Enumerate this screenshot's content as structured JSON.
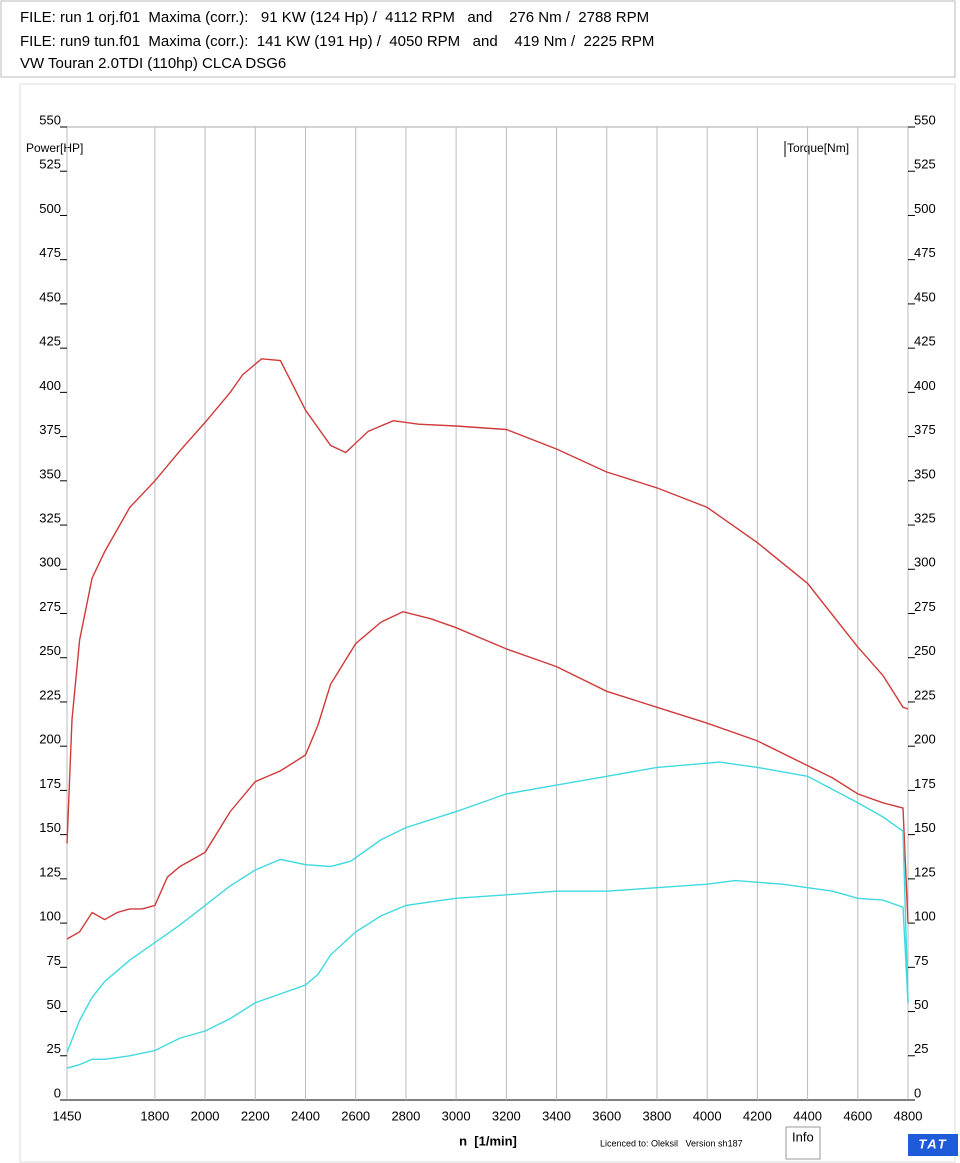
{
  "header": {
    "lines": [
      "FILE: run 1 orj.f01  Maxima (corr.):   91 KW (124 Hp) /  4112 RPM   and    276 Nm /  2788 RPM",
      "FILE: run9 tun.f01  Maxima (corr.):  141 KW (191 Hp) /  4050 RPM   and    419 Nm /  2225 RPM",
      "VW Touran 2.0TDI (110hp) CLCA DSG6"
    ]
  },
  "footer": {
    "licence": "Licenced to: Oleksil   Version sh187",
    "button": "Info",
    "logo": "TAT"
  },
  "chart_data": {
    "type": "line",
    "y_label": "Power[HP]",
    "y2_label": "Torque[Nm]",
    "x_label": "n  [1/min]",
    "xlim": [
      1450,
      4800
    ],
    "xticks": [
      1450,
      1800,
      2000,
      2200,
      2400,
      2600,
      2800,
      3000,
      3200,
      3400,
      3600,
      3800,
      4000,
      4200,
      4400,
      4600,
      4800
    ],
    "ylim": [
      0,
      550
    ],
    "yticks": [
      0,
      25,
      50,
      75,
      100,
      125,
      150,
      175,
      200,
      225,
      250,
      275,
      300,
      325,
      350,
      375,
      400,
      425,
      450,
      475,
      500,
      525,
      550
    ],
    "y2lim": [
      0,
      550
    ],
    "y2ticks": [
      0,
      25,
      50,
      75,
      100,
      125,
      150,
      175,
      200,
      225,
      250,
      275,
      300,
      325,
      350,
      375,
      400,
      425,
      450,
      475,
      500,
      525,
      550
    ],
    "grid": "x",
    "series": [
      {
        "color": "#d03a3a",
        "axis": "y2",
        "x": [
          1450,
          1470,
          1500,
          1550,
          1600,
          1700,
          1800,
          1900,
          2000,
          2100,
          2150,
          2225,
          2300,
          2400,
          2500,
          2560,
          2650,
          2750,
          2850,
          3000,
          3200,
          3400,
          3600,
          3800,
          4000,
          4200,
          4400,
          4600,
          4700,
          4780,
          4800
        ],
        "values": [
          145,
          215,
          260,
          295,
          310,
          335,
          350,
          367,
          383,
          400,
          410,
          419,
          418,
          390,
          370,
          366,
          378,
          384,
          382,
          381,
          379,
          368,
          355,
          346,
          335,
          315,
          292,
          256,
          240,
          222,
          221
        ]
      },
      {
        "color": "#d03a3a",
        "axis": "y2",
        "x": [
          1450,
          1500,
          1550,
          1600,
          1650,
          1700,
          1750,
          1800,
          1850,
          1900,
          2000,
          2100,
          2200,
          2300,
          2400,
          2450,
          2500,
          2600,
          2700,
          2788,
          2900,
          3000,
          3200,
          3400,
          3600,
          3800,
          4000,
          4200,
          4400,
          4500,
          4600,
          4700,
          4780,
          4800
        ],
        "values": [
          91,
          95,
          106,
          102,
          106,
          108,
          108,
          110,
          126,
          132,
          140,
          163,
          180,
          186,
          195,
          212,
          235,
          258,
          270,
          276,
          272,
          267,
          255,
          245,
          231,
          222,
          213,
          203,
          189,
          182,
          173,
          168,
          165,
          100
        ]
      },
      {
        "color": "#3fd9e0",
        "x": [
          1450,
          1500,
          1550,
          1600,
          1700,
          1800,
          1900,
          2000,
          2100,
          2200,
          2300,
          2400,
          2500,
          2580,
          2700,
          2800,
          3000,
          3200,
          3400,
          3600,
          3800,
          4050,
          4200,
          4400,
          4600,
          4700,
          4780,
          4800
        ],
        "values": [
          27,
          45,
          58,
          67,
          79,
          89,
          99,
          110,
          121,
          130,
          136,
          133,
          132,
          135,
          147,
          154,
          163,
          173,
          178,
          183,
          188,
          191,
          188,
          183,
          168,
          160,
          152,
          55
        ]
      },
      {
        "color": "#3fd9e0",
        "x": [
          1450,
          1500,
          1550,
          1600,
          1700,
          1800,
          1900,
          2000,
          2100,
          2200,
          2300,
          2400,
          2450,
          2500,
          2600,
          2700,
          2800,
          3000,
          3200,
          3400,
          3600,
          3800,
          4000,
          4112,
          4300,
          4500,
          4600,
          4700,
          4780,
          4800
        ],
        "values": [
          18,
          20,
          23,
          23,
          25,
          28,
          35,
          39,
          46,
          55,
          60,
          65,
          71,
          82,
          95,
          104,
          110,
          114,
          116,
          118,
          118,
          120,
          122,
          124,
          122,
          118,
          114,
          113,
          109,
          55
        ]
      }
    ]
  }
}
